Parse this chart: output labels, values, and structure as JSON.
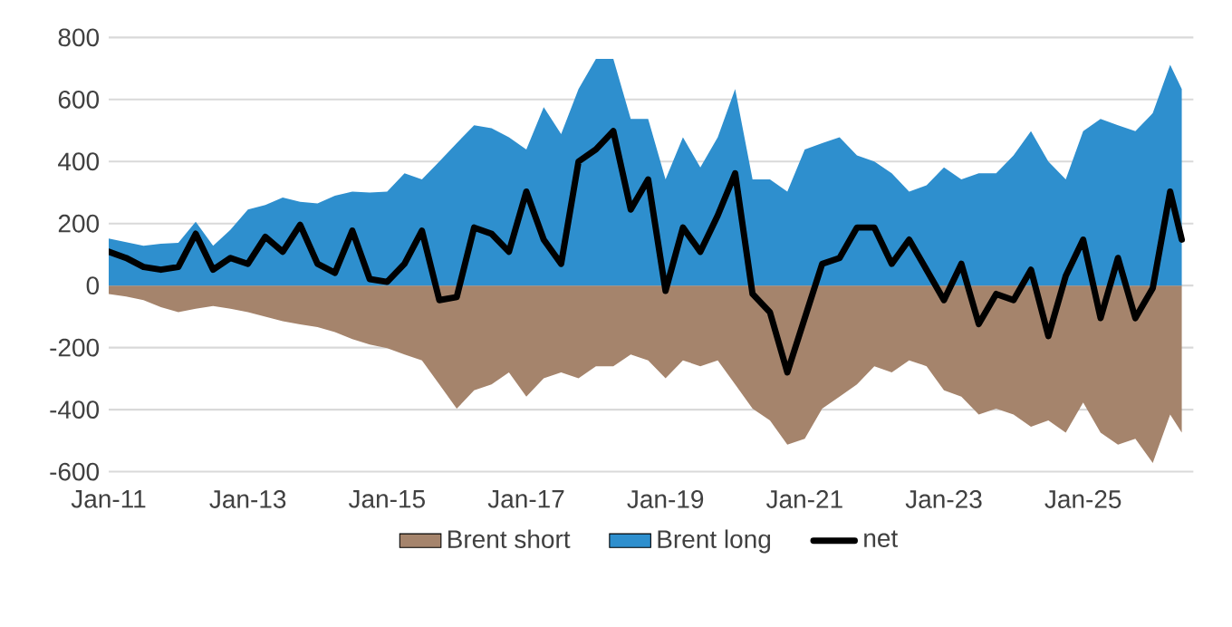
{
  "chart_data": {
    "type": "area",
    "x": [
      "2011-01",
      "2011-04",
      "2011-07",
      "2011-10",
      "2012-01",
      "2012-04",
      "2012-07",
      "2012-10",
      "2013-01",
      "2013-04",
      "2013-07",
      "2013-10",
      "2014-01",
      "2014-04",
      "2014-07",
      "2014-10",
      "2015-01",
      "2015-04",
      "2015-07",
      "2015-10",
      "2016-01",
      "2016-04",
      "2016-07",
      "2016-10",
      "2017-01",
      "2017-04",
      "2017-07",
      "2017-10",
      "2018-01",
      "2018-04",
      "2018-07",
      "2018-10",
      "2019-01",
      "2019-04",
      "2019-07",
      "2019-10",
      "2020-01",
      "2020-04",
      "2020-07",
      "2020-10",
      "2021-01",
      "2021-04",
      "2021-07",
      "2021-10",
      "2022-01",
      "2022-04",
      "2022-07",
      "2022-10",
      "2023-01",
      "2023-04",
      "2023-07",
      "2023-10",
      "2024-01",
      "2024-04",
      "2024-07",
      "2024-10",
      "2025-01",
      "2025-04",
      "2025-07",
      "2025-10",
      "2026-01",
      "2026-04",
      "2026-06"
    ],
    "series": [
      {
        "name": "Brent short",
        "color": "#a5846c",
        "values": [
          -27,
          -35,
          -47,
          -70,
          -86,
          -75,
          -66,
          -75,
          -86,
          -100,
          -115,
          -125,
          -134,
          -150,
          -173,
          -190,
          -202,
          -222,
          -241,
          -319,
          -397,
          -338,
          -319,
          -280,
          -358,
          -299,
          -280,
          -299,
          -260,
          -260,
          -222,
          -241,
          -299,
          -241,
          -260,
          -241,
          -319,
          -397,
          -435,
          -513,
          -494,
          -397,
          -358,
          -319,
          -260,
          -280,
          -241,
          -260,
          -338,
          -358,
          -416,
          -397,
          -416,
          -455,
          -435,
          -474,
          -377,
          -474,
          -513,
          -494,
          -572,
          -416,
          -474
        ]
      },
      {
        "name": "Brent long",
        "color": "#2e8fce",
        "values": [
          152,
          140,
          128,
          135,
          138,
          206,
          128,
          180,
          245,
          260,
          284,
          270,
          265,
          290,
          303,
          300,
          303,
          362,
          342,
          400,
          459,
          517,
          507,
          478,
          439,
          575,
          488,
          634,
          731,
          731,
          537,
          537,
          342,
          478,
          381,
          478,
          634,
          342,
          342,
          303,
          439,
          459,
          478,
          420,
          400,
          362,
          303,
          323,
          381,
          342,
          362,
          362,
          420,
          498,
          400,
          342,
          498,
          537,
          517,
          498,
          556,
          712,
          634
        ]
      },
      {
        "name": "net",
        "type": "line",
        "color": "#000000",
        "values": [
          109,
          89,
          60,
          51,
          60,
          167,
          51,
          89,
          70,
          157,
          109,
          196,
          70,
          41,
          177,
          21,
          12,
          70,
          177,
          -47,
          -37,
          187,
          167,
          109,
          303,
          148,
          70,
          400,
          439,
          498,
          245,
          342,
          -17,
          187,
          109,
          226,
          362,
          -27,
          -86,
          -280,
          -105,
          70,
          89,
          187,
          187,
          70,
          148,
          51,
          -47,
          70,
          -124,
          -27,
          -47,
          51,
          -163,
          31,
          148,
          -105,
          89,
          -105,
          -8,
          303,
          148
        ]
      }
    ],
    "xlim": [
      "2011-01",
      "2026-08"
    ],
    "xticks": [
      {
        "value": "2011-01",
        "label": "Jan-11"
      },
      {
        "value": "2013-01",
        "label": "Jan-13"
      },
      {
        "value": "2015-01",
        "label": "Jan-15"
      },
      {
        "value": "2017-01",
        "label": "Jan-17"
      },
      {
        "value": "2019-01",
        "label": "Jan-19"
      },
      {
        "value": "2021-01",
        "label": "Jan-21"
      },
      {
        "value": "2023-01",
        "label": "Jan-23"
      },
      {
        "value": "2025-01",
        "label": "Jan-25"
      }
    ],
    "ylim": [
      -600,
      800
    ],
    "yticks": [
      -600,
      -400,
      -200,
      0,
      200,
      400,
      600,
      800
    ],
    "grid": "y",
    "legend": "bottom"
  }
}
